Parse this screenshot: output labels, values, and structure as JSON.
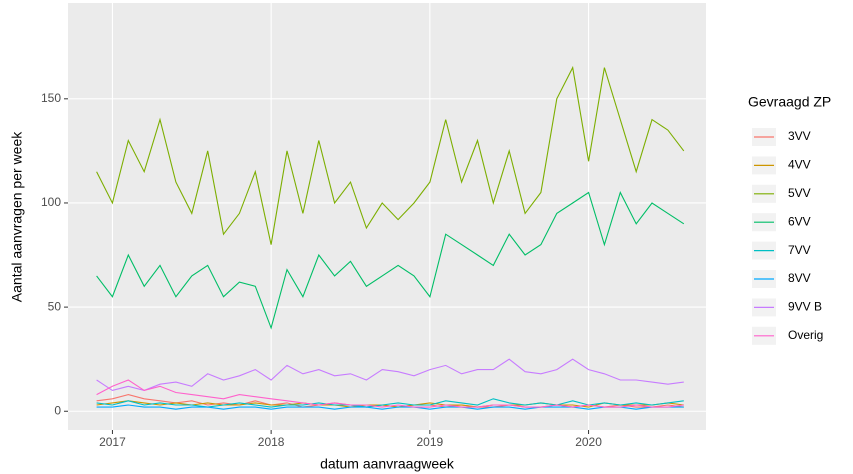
{
  "chart_data": {
    "type": "line",
    "x_label": "datum aanvraagweek",
    "y_label": "Aantal aanvragen per week",
    "legend_title": "Gevraagd ZP",
    "legend": "right",
    "grid": true,
    "background": "#EBEBEB",
    "xlim": [
      2016.72,
      2020.74
    ],
    "xticks": [
      2017,
      2018,
      2019,
      2020
    ],
    "ylim": [
      -9,
      196
    ],
    "yticks": [
      0,
      50,
      100,
      150
    ],
    "x": [
      2016.9,
      2017.0,
      2017.1,
      2017.2,
      2017.3,
      2017.4,
      2017.5,
      2017.6,
      2017.7,
      2017.8,
      2017.9,
      2018.0,
      2018.1,
      2018.2,
      2018.3,
      2018.4,
      2018.5,
      2018.6,
      2018.7,
      2018.8,
      2018.9,
      2019.0,
      2019.1,
      2019.2,
      2019.3,
      2019.4,
      2019.5,
      2019.6,
      2019.7,
      2019.8,
      2019.9,
      2020.0,
      2020.1,
      2020.2,
      2020.3,
      2020.4,
      2020.5,
      2020.6
    ],
    "series": [
      {
        "name": "3VV",
        "color": "#F8766D",
        "values": [
          5,
          6,
          8,
          6,
          5,
          4,
          5,
          3,
          4,
          3,
          5,
          3,
          4,
          2,
          3,
          4,
          3,
          2,
          3,
          2,
          3,
          3,
          2,
          3,
          2,
          2,
          3,
          2,
          2,
          3,
          2,
          3,
          2,
          3,
          2,
          2,
          3,
          2
        ]
      },
      {
        "name": "4VV",
        "color": "#CD9600",
        "values": [
          3,
          4,
          5,
          4,
          3,
          4,
          3,
          4,
          3,
          3,
          4,
          3,
          3,
          4,
          3,
          3,
          2,
          3,
          3,
          2,
          3,
          4,
          3,
          3,
          2,
          3,
          3,
          3,
          4,
          3,
          3,
          2,
          4,
          3,
          3,
          3,
          4,
          3
        ]
      },
      {
        "name": "5VV",
        "color": "#7CAE00",
        "values": [
          115,
          100,
          130,
          115,
          140,
          110,
          95,
          125,
          85,
          95,
          115,
          80,
          125,
          95,
          130,
          100,
          110,
          88,
          100,
          92,
          100,
          110,
          140,
          110,
          130,
          100,
          125,
          95,
          105,
          150,
          165,
          120,
          165,
          140,
          115,
          140,
          135,
          125
        ]
      },
      {
        "name": "6VV",
        "color": "#00BE67",
        "values": [
          65,
          55,
          75,
          60,
          70,
          55,
          65,
          70,
          55,
          62,
          60,
          40,
          68,
          55,
          75,
          65,
          72,
          60,
          65,
          70,
          65,
          55,
          85,
          80,
          75,
          70,
          85,
          75,
          80,
          95,
          100,
          105,
          80,
          105,
          90,
          100,
          95,
          90
        ]
      },
      {
        "name": "7VV",
        "color": "#00BFC4",
        "values": [
          4,
          3,
          5,
          3,
          4,
          3,
          3,
          2,
          3,
          4,
          3,
          2,
          3,
          3,
          4,
          3,
          3,
          2,
          3,
          4,
          3,
          3,
          5,
          4,
          3,
          6,
          4,
          3,
          4,
          3,
          5,
          3,
          4,
          3,
          4,
          3,
          4,
          5
        ]
      },
      {
        "name": "8VV",
        "color": "#00A9FF",
        "values": [
          2,
          2,
          3,
          2,
          2,
          1,
          2,
          2,
          1,
          2,
          2,
          1,
          2,
          2,
          2,
          1,
          2,
          2,
          1,
          2,
          2,
          1,
          2,
          2,
          1,
          2,
          2,
          1,
          2,
          2,
          2,
          1,
          2,
          2,
          1,
          2,
          2,
          2
        ]
      },
      {
        "name": "9VV B",
        "color": "#C77CFF",
        "values": [
          15,
          10,
          12,
          10,
          13,
          14,
          12,
          18,
          15,
          17,
          20,
          15,
          22,
          18,
          20,
          17,
          18,
          15,
          20,
          19,
          17,
          20,
          22,
          18,
          20,
          20,
          25,
          19,
          18,
          20,
          25,
          20,
          18,
          15,
          15,
          14,
          13,
          14
        ]
      },
      {
        "name": "Overig",
        "color": "#FF61CC",
        "values": [
          8,
          12,
          15,
          10,
          12,
          9,
          8,
          7,
          6,
          8,
          7,
          6,
          5,
          4,
          3,
          4,
          3,
          3,
          2,
          3,
          2,
          2,
          3,
          2,
          2,
          3,
          3,
          2,
          2,
          3,
          2,
          3,
          2,
          2,
          3,
          2,
          2,
          3
        ]
      }
    ]
  }
}
